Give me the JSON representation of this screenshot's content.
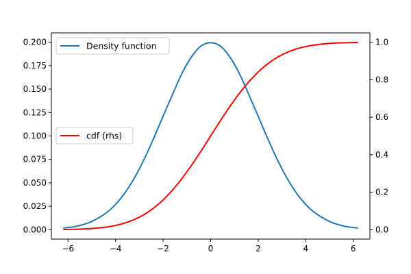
{
  "chart_data": {
    "type": "line",
    "title": "",
    "xlabel": "",
    "ylabel": "",
    "ylabel_right": "",
    "xlim": [
      -6.7,
      6.7
    ],
    "ylim": [
      -0.01,
      0.21
    ],
    "ylim_right": [
      -0.05,
      1.05
    ],
    "x_ticks": [
      -6,
      -4,
      -2,
      0,
      2,
      4,
      6
    ],
    "x_tick_labels": [
      "−6",
      "−4",
      "−2",
      "0",
      "2",
      "4",
      "6"
    ],
    "y_ticks": [
      0.0,
      0.025,
      0.05,
      0.075,
      0.1,
      0.125,
      0.15,
      0.175,
      0.2
    ],
    "y_tick_labels": [
      "0.000",
      "0.025",
      "0.050",
      "0.075",
      "0.100",
      "0.125",
      "0.150",
      "0.175",
      "0.200"
    ],
    "y_right_ticks": [
      0.0,
      0.2,
      0.4,
      0.6,
      0.8,
      1.0
    ],
    "y_right_tick_labels": [
      "0.0",
      "0.2",
      "0.4",
      "0.6",
      "0.8",
      "1.0"
    ],
    "grid": false,
    "series": [
      {
        "name": "Density function",
        "axis": "left",
        "color": "#1f77b4",
        "legend_position": "upper-left",
        "x": [
          -6.2,
          -5.6,
          -5.0,
          -4.4,
          -4.0,
          -3.6,
          -3.2,
          -2.8,
          -2.4,
          -2.0,
          -1.6,
          -1.2,
          -0.8,
          -0.4,
          0.0,
          0.4,
          0.8,
          1.2,
          1.6,
          2.0,
          2.4,
          2.8,
          3.2,
          3.6,
          4.0,
          4.4,
          5.0,
          5.6,
          6.2
        ],
        "y": [
          0.0017,
          0.0039,
          0.0088,
          0.0178,
          0.027,
          0.0395,
          0.0556,
          0.075,
          0.0973,
          0.121,
          0.1445,
          0.1671,
          0.1846,
          0.1961,
          0.1995,
          0.1961,
          0.1846,
          0.1671,
          0.1445,
          0.121,
          0.0973,
          0.075,
          0.0556,
          0.0395,
          0.027,
          0.0178,
          0.0088,
          0.0039,
          0.0017
        ]
      },
      {
        "name": "cdf (rhs)",
        "axis": "right",
        "color": "#ff0000",
        "legend_position": "center-left",
        "x": [
          -6.2,
          -5.6,
          -5.0,
          -4.4,
          -4.0,
          -3.6,
          -3.2,
          -2.8,
          -2.4,
          -2.0,
          -1.6,
          -1.2,
          -0.8,
          -0.4,
          0.0,
          0.4,
          0.8,
          1.2,
          1.6,
          2.0,
          2.4,
          2.8,
          3.2,
          3.6,
          4.0,
          4.4,
          5.0,
          5.6,
          6.2
        ],
        "y": [
          0.001,
          0.0026,
          0.0062,
          0.0139,
          0.0228,
          0.0359,
          0.0548,
          0.0808,
          0.1151,
          0.1587,
          0.2119,
          0.2743,
          0.3446,
          0.4207,
          0.5,
          0.5793,
          0.6554,
          0.7257,
          0.7881,
          0.8413,
          0.8849,
          0.9192,
          0.9452,
          0.9641,
          0.9772,
          0.9861,
          0.9938,
          0.9974,
          0.999
        ]
      }
    ]
  }
}
